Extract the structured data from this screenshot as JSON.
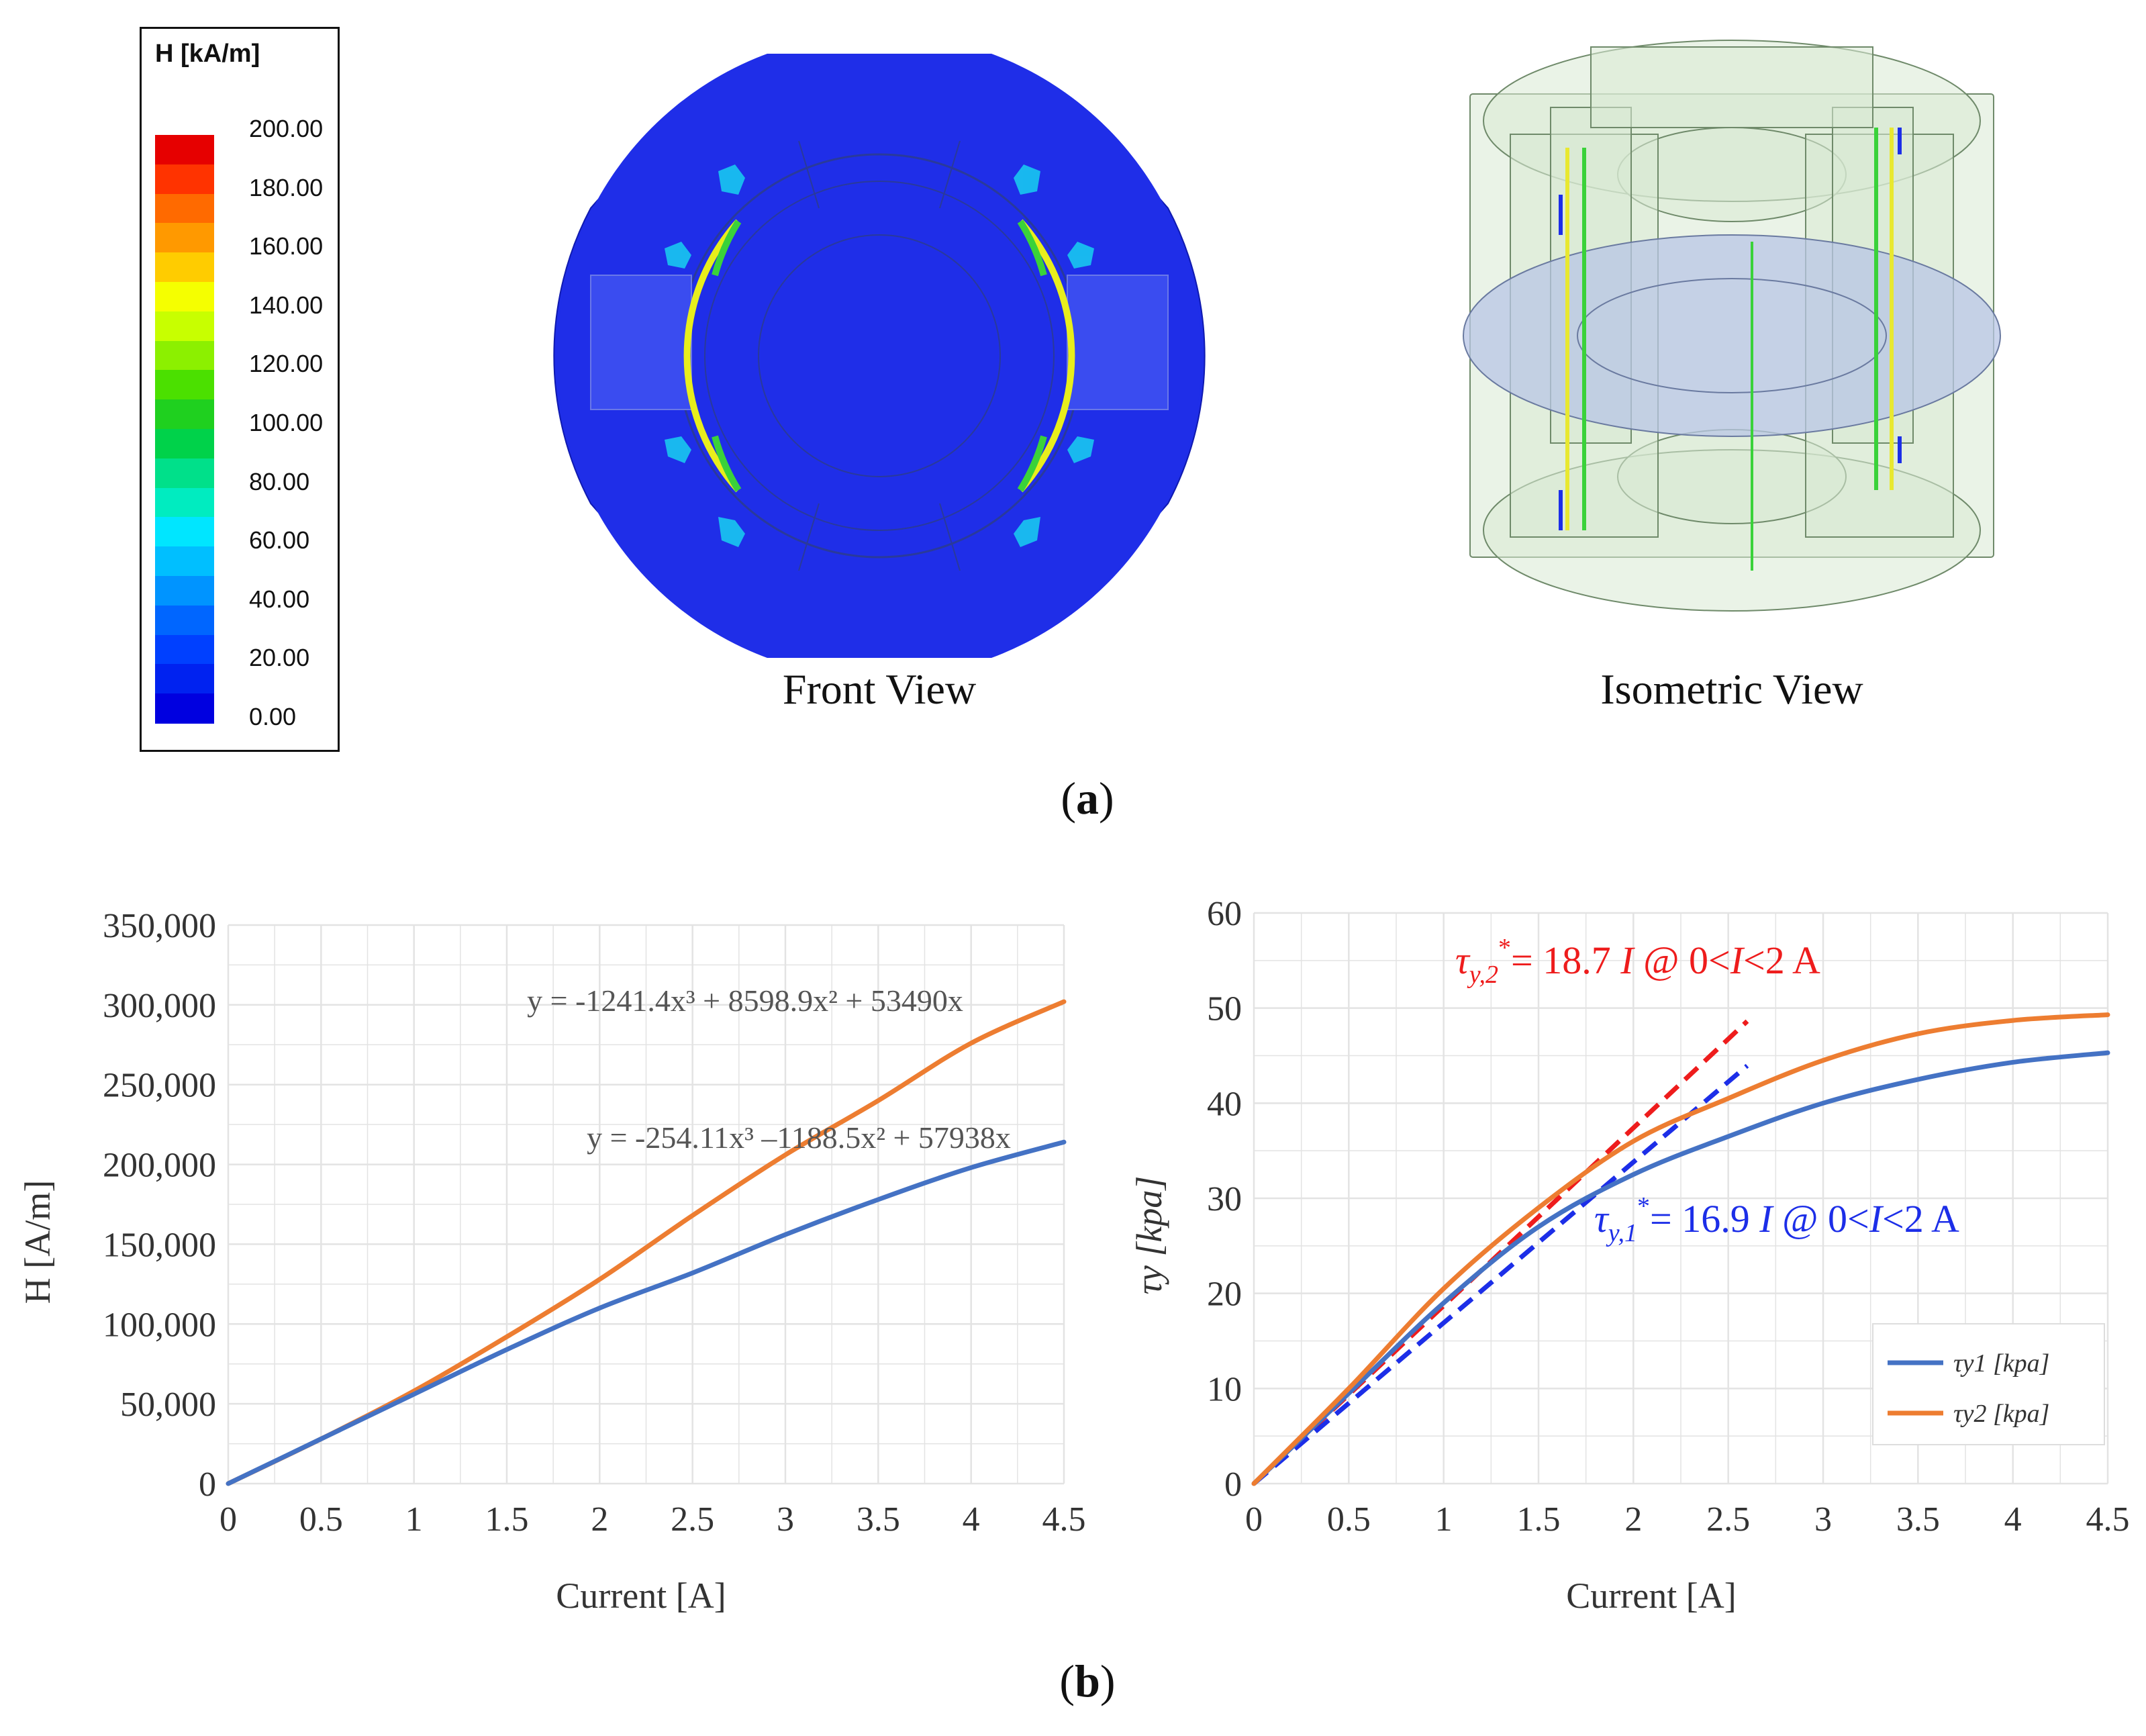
{
  "panel_a": {
    "label_open": "(",
    "label_letter": "a",
    "label_close": ")",
    "legend": {
      "title": "H [kA/m]",
      "labels": [
        "200.00",
        "180.00",
        "160.00",
        "140.00",
        "120.00",
        "100.00",
        "80.00",
        "60.00",
        "40.00",
        "20.00",
        "0.00"
      ],
      "colors": [
        "#e60000",
        "#ff3300",
        "#ff6a00",
        "#ff9900",
        "#ffcc00",
        "#f5ff00",
        "#c8ff00",
        "#8cf000",
        "#4be000",
        "#1fd01f",
        "#00d24a",
        "#00e08a",
        "#00ecc0",
        "#00e6ff",
        "#00bfff",
        "#0094ff",
        "#0066ff",
        "#0040ff",
        "#0022f0",
        "#0000e0"
      ]
    },
    "front_view_caption": "Front View",
    "isometric_view_caption": "Isometric View"
  },
  "panel_b": {
    "label_open": "(",
    "label_letter": "b",
    "label_close": ")"
  },
  "chart_data": [
    {
      "type": "line",
      "xlabel": "Current [A]",
      "ylabel": "H [A/m]",
      "xlim": [
        0,
        4.5
      ],
      "ylim": [
        0,
        350000
      ],
      "xticks": [
        "0",
        "0.5",
        "1",
        "1.5",
        "2",
        "2.5",
        "3",
        "3.5",
        "4",
        "4.5"
      ],
      "yticks": [
        "0",
        "50,000",
        "100,000",
        "150,000",
        "200,000",
        "250,000",
        "300,000",
        "350,000"
      ],
      "grid": true,
      "x": [
        0,
        0.5,
        1,
        1.5,
        2,
        2.5,
        3,
        3.5,
        4,
        4.5
      ],
      "series": [
        {
          "name": "orange",
          "color": "#ed7d31",
          "values": [
            0,
            28000,
            58000,
            92000,
            128000,
            168000,
            206000,
            240000,
            276000,
            302000
          ]
        },
        {
          "name": "blue",
          "color": "#4472c4",
          "values": [
            0,
            28000,
            56000,
            84000,
            110000,
            132000,
            156000,
            178000,
            198000,
            214000
          ]
        }
      ],
      "annotations": [
        {
          "text": "y = -1241.4x³ + 8598.9x² + 53490x",
          "color": "#555555"
        },
        {
          "text": "y = -254.11x³ –1188.5x² + 57938x",
          "color": "#555555"
        }
      ]
    },
    {
      "type": "line",
      "xlabel": "Current [A]",
      "ylabel": "τy [kpa]",
      "xlim": [
        0,
        4.5
      ],
      "ylim": [
        0,
        60
      ],
      "xticks": [
        "0",
        "0.5",
        "1",
        "1.5",
        "2",
        "2.5",
        "3",
        "3.5",
        "4",
        "4.5"
      ],
      "yticks": [
        "0",
        "10",
        "20",
        "30",
        "40",
        "50",
        "60"
      ],
      "grid": true,
      "x": [
        0,
        0.5,
        1,
        1.5,
        2,
        2.5,
        3,
        3.5,
        4,
        4.5
      ],
      "series": [
        {
          "name": "τy1 [kpa]",
          "color": "#4472c4",
          "values": [
            0,
            9.5,
            19,
            27,
            32.5,
            36.5,
            40,
            42.5,
            44.3,
            45.3
          ]
        },
        {
          "name": "τy2 [kpa]",
          "color": "#ed7d31",
          "values": [
            0,
            10,
            20.5,
            29,
            36,
            40.5,
            44.5,
            47.3,
            48.7,
            49.3
          ]
        }
      ],
      "fit_lines": [
        {
          "slope": 18.7,
          "x_end": 2.6,
          "color": "#ee1c1c"
        },
        {
          "slope": 16.9,
          "x_end": 2.6,
          "color": "#1c2ee8"
        }
      ],
      "annotations": [
        {
          "prefix": "τ",
          "sub": "y,2",
          "sup": "*",
          "body": "= 18.7 ",
          "I": "I",
          "mid": " @ 0<",
          "I2": "I",
          "tail": "<2 A",
          "color": "#ee1c1c"
        },
        {
          "prefix": "τ",
          "sub": "y,1",
          "sup": "*",
          "body": "= 16.9 ",
          "I": "I",
          "mid": " @ 0<",
          "I2": "I",
          "tail": "<2 A",
          "color": "#1c2ee8"
        }
      ],
      "legend": [
        "τy1 [kpa]",
        "τy2 [kpa]"
      ]
    }
  ]
}
